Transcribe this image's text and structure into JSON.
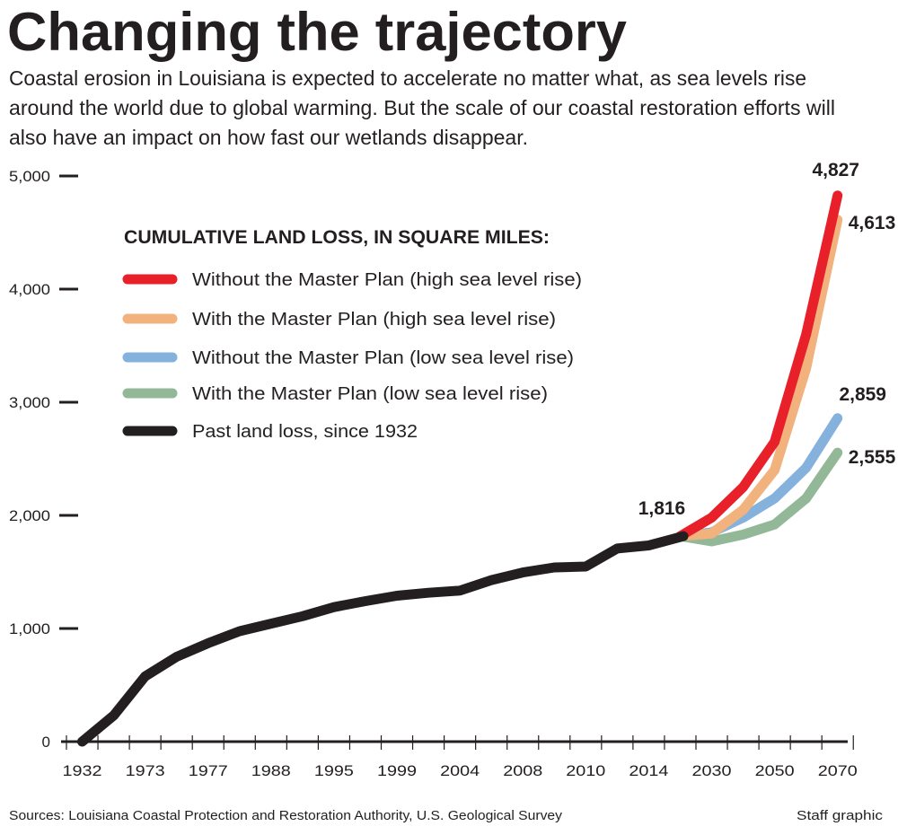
{
  "title": "Changing the trajectory",
  "subtitle_lines": [
    "Coastal erosion in Louisiana is expected to accelerate no matter what, as sea levels rise",
    "around the world due to global warming. But the scale of our coastal restoration efforts will",
    "also have an impact on how fast our wetlands disappear."
  ],
  "footer": {
    "sources": "Sources: Louisiana Coastal Protection and Restoration Authority, U.S. Geological Survey",
    "credit": "Staff graphic"
  },
  "chart_data": {
    "type": "line",
    "title": "Changing the trajectory",
    "legend_title": "CUMULATIVE LAND LOSS, IN SQUARE MILES:",
    "legend_placement": "top-left",
    "ylim": [
      0,
      5000
    ],
    "yticks": [
      0,
      1000,
      2000,
      3000,
      4000,
      5000
    ],
    "ytick_labels": [
      "0",
      "1,000",
      "2,000",
      "3,000",
      "4,000",
      "5,000"
    ],
    "xtick_labels": [
      "1932",
      "1973",
      "1977",
      "1988",
      "1995",
      "1999",
      "2004",
      "2008",
      "2010",
      "2014",
      "2030",
      "2050",
      "2070"
    ],
    "x_note": "x values are category positions: label i sits at position i; intermediate positions are half-steps",
    "series": [
      {
        "name": "With the Master Plan (low sea level rise)",
        "color": "#93b898",
        "x": [
          9.5,
          10,
          10.5,
          11,
          11.5,
          12
        ],
        "y": [
          1816,
          1770,
          1830,
          1920,
          2150,
          2555
        ],
        "end_label": "2,555"
      },
      {
        "name": "Without the Master Plan (low sea level rise)",
        "color": "#85b1dd",
        "x": [
          9.5,
          10,
          10.5,
          11,
          11.5,
          12
        ],
        "y": [
          1816,
          1850,
          1980,
          2150,
          2420,
          2859
        ],
        "end_label": "2,859"
      },
      {
        "name": "With the Master Plan (high sea level rise)",
        "color": "#f2b27e",
        "x": [
          9.5,
          10,
          10.5,
          11,
          11.5,
          12
        ],
        "y": [
          1816,
          1840,
          2050,
          2400,
          3300,
          4613
        ],
        "end_label": "4,613"
      },
      {
        "name": "Without the Master Plan (high sea level rise)",
        "color": "#e8202a",
        "x": [
          9.5,
          10,
          10.5,
          11,
          11.5,
          12
        ],
        "y": [
          1816,
          1980,
          2250,
          2650,
          3600,
          4827
        ],
        "end_label": "4,827"
      },
      {
        "name": "Past land loss, since 1932",
        "color": "#231f20",
        "x": [
          0,
          0.5,
          1,
          1.5,
          2,
          2.5,
          3,
          3.5,
          4,
          4.5,
          5,
          5.5,
          6,
          6.5,
          7,
          7.5,
          8,
          8.5,
          9,
          9.55
        ],
        "y": [
          0,
          231,
          577,
          750,
          870,
          976,
          1043,
          1109,
          1189,
          1242,
          1290,
          1316,
          1335,
          1428,
          1495,
          1540,
          1548,
          1707,
          1734,
          1816
        ],
        "end_label": "1,816"
      }
    ],
    "legend_order": [
      "Without the Master Plan (high sea level rise)",
      "With the Master Plan (high sea level rise)",
      "Without the Master Plan (low sea level rise)",
      "With the Master Plan (low sea level rise)",
      "Past land loss, since 1932"
    ]
  }
}
